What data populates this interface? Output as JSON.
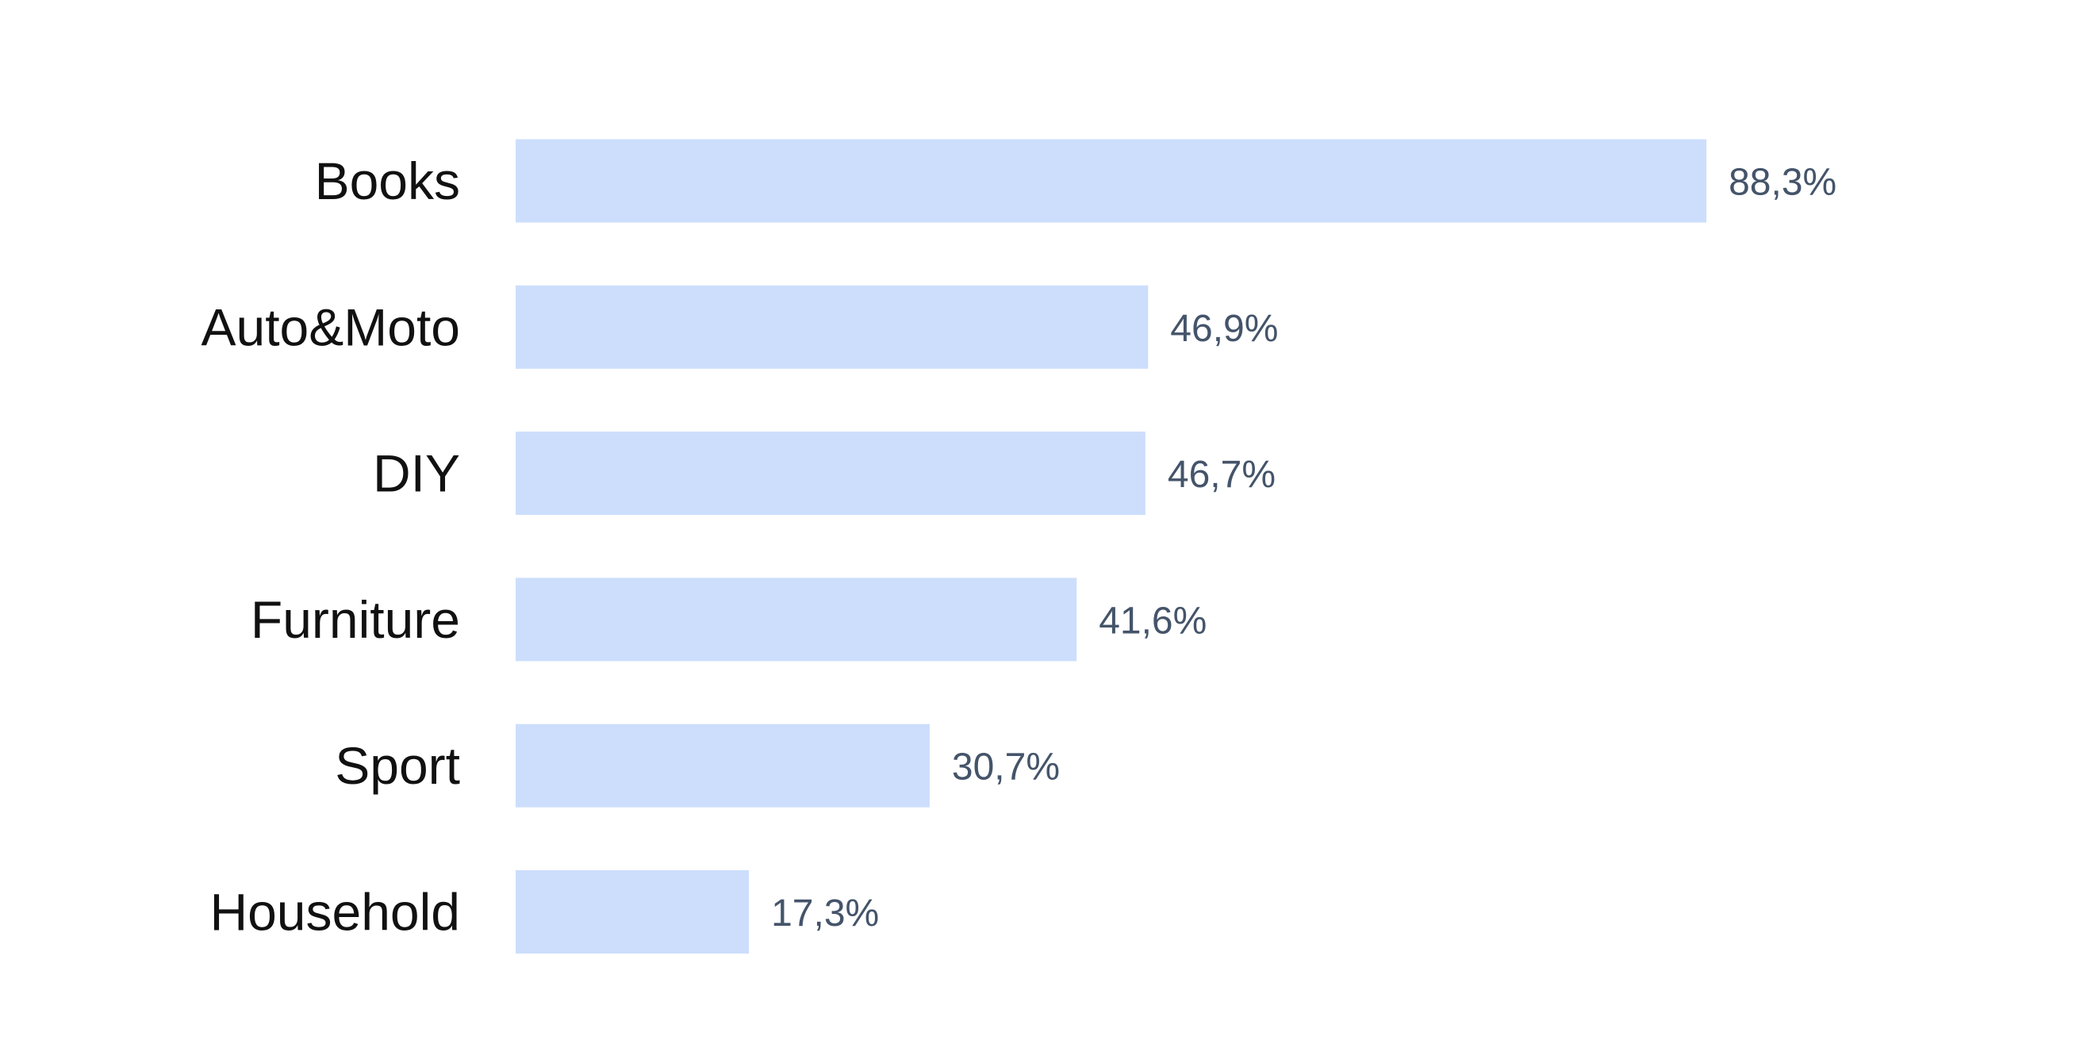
{
  "chart_data": {
    "type": "bar",
    "orientation": "horizontal",
    "categories": [
      "Books",
      "Auto&Moto",
      "DIY",
      "Furniture",
      "Sport",
      "Household"
    ],
    "values": [
      88.3,
      46.9,
      46.7,
      41.6,
      30.7,
      17.3
    ],
    "value_labels": [
      "88,3%",
      "46,9%",
      "46,7%",
      "41,6%",
      "30,7%",
      "17,3%"
    ],
    "unit": "%",
    "xlim": [
      0,
      100
    ],
    "grid": false,
    "legend": "none",
    "colors": {
      "bar": "#ccdefc",
      "category_text": "#111111",
      "value_text": "#44546a"
    }
  }
}
